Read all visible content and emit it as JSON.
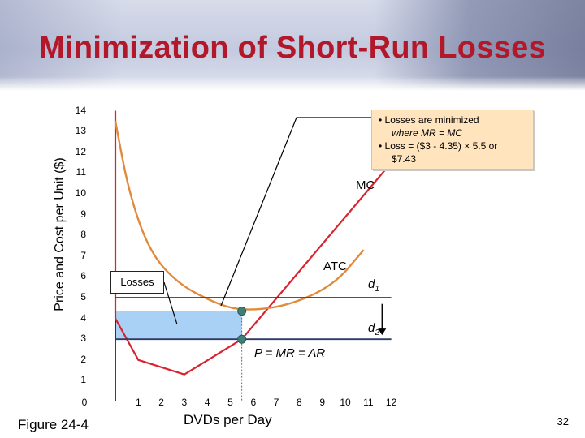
{
  "title": "Minimization of Short-Run Losses",
  "figure_label": "Figure 24-4",
  "page_number": "32",
  "note": {
    "line1": "• Losses are minimized",
    "line2": "where MR = MC",
    "line3": "• Loss = ($3 - 4.35) × 5.5 or",
    "line4": "$7.43"
  },
  "losses_label": "Losses",
  "colors": {
    "title": "#b3182a",
    "mc": "#d8232f",
    "atc": "#e08a3c",
    "demand": "#2c3a66",
    "loss_fill": "#a9d1f5",
    "point": "#3e7f77"
  },
  "chart_data": {
    "type": "line",
    "title": "",
    "xlabel": "DVDs per Day",
    "ylabel": "Price and Cost per Unit ($)",
    "xlim": [
      0,
      12
    ],
    "ylim": [
      0,
      14
    ],
    "x_ticks": [
      "0",
      "1",
      "2",
      "3",
      "4",
      "5",
      "6",
      "7",
      "8",
      "9",
      "10",
      "11",
      "12"
    ],
    "y_ticks": [
      "14",
      "13",
      "12",
      "11",
      "10",
      "9",
      "8",
      "7",
      "6",
      "5",
      "4",
      "3",
      "2",
      "1"
    ],
    "series": [
      {
        "name": "MC",
        "points": [
          [
            0,
            14
          ],
          [
            0,
            4
          ],
          [
            1,
            2
          ],
          [
            3,
            1.3
          ],
          [
            5.5,
            3
          ],
          [
            12,
            11.5
          ]
        ]
      },
      {
        "name": "ATC",
        "points": [
          [
            0,
            13.5
          ],
          [
            0.6,
            10
          ],
          [
            1.5,
            7.2
          ],
          [
            2.7,
            5.7
          ],
          [
            4.2,
            4.8
          ],
          [
            5.5,
            4.35
          ],
          [
            7.5,
            4.6
          ],
          [
            9.5,
            5.6
          ],
          [
            10.8,
            7.3
          ]
        ]
      },
      {
        "name": "d1",
        "points": [
          [
            0,
            5
          ],
          [
            12,
            5
          ]
        ]
      },
      {
        "name": "d2",
        "points": [
          [
            0,
            3
          ],
          [
            12,
            3
          ]
        ]
      }
    ],
    "annotations": {
      "mc_label": "MC",
      "atc_label": "ATC",
      "d1_main": "d",
      "d1_sub": "1",
      "d2_main": "d",
      "d2_sub": "2",
      "price_line_label": "P = MR = AR",
      "loss_region": {
        "x": [
          0,
          5.5
        ],
        "y": [
          3,
          4.35
        ]
      },
      "optimum": {
        "x": 5.5,
        "price": 3,
        "atc": 4.35
      },
      "demand_shift": {
        "x": 11.6,
        "from": 4.7,
        "to": 3.2
      }
    }
  }
}
